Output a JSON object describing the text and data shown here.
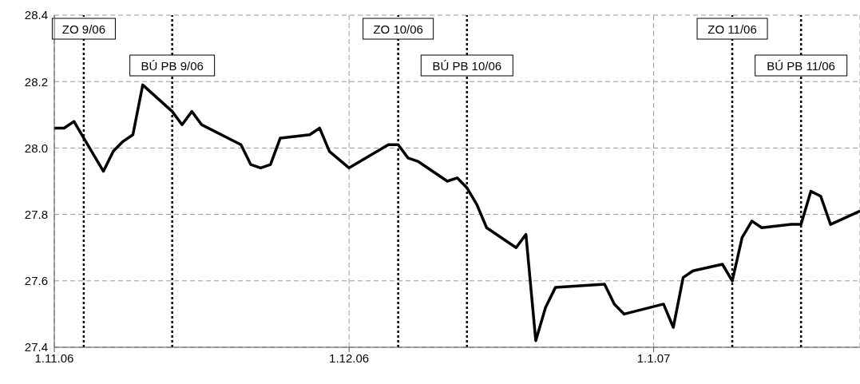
{
  "chart_data": {
    "type": "line",
    "x": [
      "2006-11-01",
      "2006-11-02",
      "2006-11-03",
      "2006-11-06",
      "2006-11-07",
      "2006-11-08",
      "2006-11-09",
      "2006-11-10",
      "2006-11-13",
      "2006-11-14",
      "2006-11-15",
      "2006-11-16",
      "2006-11-20",
      "2006-11-21",
      "2006-11-22",
      "2006-11-23",
      "2006-11-24",
      "2006-11-27",
      "2006-11-28",
      "2006-11-29",
      "2006-12-01",
      "2006-12-05",
      "2006-12-06",
      "2006-12-07",
      "2006-12-08",
      "2006-12-11",
      "2006-12-12",
      "2006-12-13",
      "2006-12-14",
      "2006-12-15",
      "2006-12-18",
      "2006-12-19",
      "2006-12-20",
      "2006-12-21",
      "2006-12-22",
      "2006-12-27",
      "2006-12-28",
      "2006-12-29",
      "2007-01-02",
      "2007-01-03",
      "2007-01-04",
      "2007-01-05",
      "2007-01-08",
      "2007-01-09",
      "2007-01-10",
      "2007-01-11",
      "2007-01-12",
      "2007-01-15",
      "2007-01-16",
      "2007-01-17",
      "2007-01-18",
      "2007-01-19",
      "2007-01-22"
    ],
    "series": [
      {
        "color": "#000000",
        "values": [
          28.06,
          28.06,
          28.08,
          27.93,
          27.99,
          28.02,
          28.04,
          28.19,
          28.11,
          28.07,
          28.11,
          28.07,
          28.01,
          27.95,
          27.94,
          27.95,
          28.03,
          28.04,
          28.06,
          27.99,
          27.94,
          28.01,
          28.01,
          27.97,
          27.96,
          27.9,
          27.91,
          27.88,
          27.83,
          27.76,
          27.7,
          27.74,
          27.42,
          27.52,
          27.58,
          27.59,
          27.53,
          27.5,
          27.53,
          27.46,
          27.61,
          27.63,
          27.65,
          27.6,
          27.73,
          27.78,
          27.76,
          27.77,
          27.77,
          27.87,
          27.855,
          27.77,
          27.81
        ]
      }
    ],
    "xlim": [
      "2006-11-01",
      "2007-01-22"
    ],
    "xticks": [
      {
        "value": "2006-11-01",
        "label": "1.11.06"
      },
      {
        "value": "2006-12-01",
        "label": "1.12.06"
      },
      {
        "value": "2007-01-01",
        "label": "1.1.07"
      }
    ],
    "ylim": [
      27.4,
      28.4
    ],
    "yticks": [
      {
        "value": 27.4,
        "label": "27.4"
      },
      {
        "value": 27.6,
        "label": "27.6"
      },
      {
        "value": 27.8,
        "label": "27.8"
      },
      {
        "value": 28,
        "label": "28.0"
      },
      {
        "value": 28.2,
        "label": "28.2"
      },
      {
        "value": 28.4,
        "label": "28.4"
      }
    ],
    "grid": true,
    "legend": false,
    "marker": "none",
    "line_style": "solid",
    "ref_lines": [
      {
        "axis": "x",
        "value": "2006-11-04",
        "label": "ZO 9/06",
        "color": "#000000",
        "line_style": "dotted"
      },
      {
        "axis": "x",
        "value": "2006-11-13",
        "label": "BÚ PB 9/06",
        "color": "#000000",
        "line_style": "dotted"
      },
      {
        "axis": "x",
        "value": "2006-12-06",
        "label": "ZO 10/06",
        "color": "#000000",
        "line_style": "dotted"
      },
      {
        "axis": "x",
        "value": "2006-12-13",
        "label": "BÚ PB 10/06",
        "color": "#000000",
        "line_style": "dotted"
      },
      {
        "axis": "x",
        "value": "2007-01-09",
        "label": "ZO 11/06",
        "color": "#000000",
        "line_style": "dotted"
      },
      {
        "axis": "x",
        "value": "2007-01-16",
        "label": "BÚ PB 11/06",
        "color": "#000000",
        "line_style": "dotted"
      }
    ]
  }
}
